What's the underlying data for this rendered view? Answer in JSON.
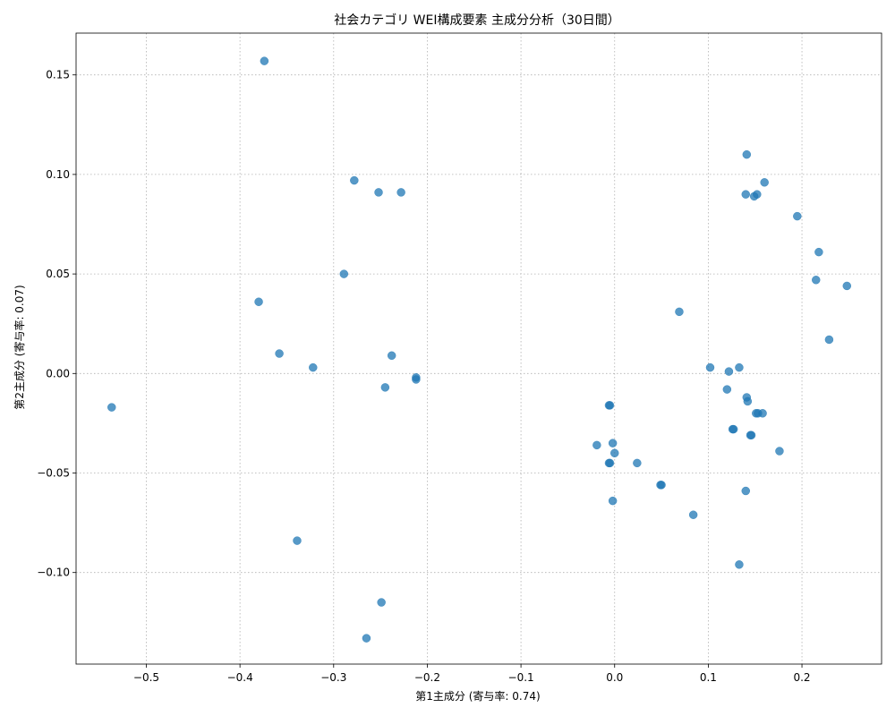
{
  "chart_data": {
    "type": "scatter",
    "title": "社会カテゴリ WEI構成要素 主成分分析（30日間）",
    "xlabel": "第1主成分 (寄与率: 0.74)",
    "ylabel": "第2主成分 (寄与率: 0.07)",
    "xlim": [
      -0.575,
      0.285
    ],
    "ylim": [
      -0.146,
      0.171
    ],
    "xticks": [
      -0.5,
      -0.4,
      -0.3,
      -0.2,
      -0.1,
      0.0,
      0.1,
      0.2
    ],
    "xtick_labels": [
      "−0.5",
      "−0.4",
      "−0.3",
      "−0.2",
      "−0.1",
      "0.0",
      "0.1",
      "0.2"
    ],
    "yticks": [
      -0.1,
      -0.05,
      0.0,
      0.05,
      0.1,
      0.15
    ],
    "ytick_labels": [
      "−0.10",
      "−0.05",
      "0.00",
      "0.05",
      "0.10",
      "0.15"
    ],
    "grid": true,
    "marker_color": "#1f77b4",
    "marker_alpha": 0.75,
    "points": [
      {
        "x": -0.537,
        "y": -0.017
      },
      {
        "x": -0.374,
        "y": 0.157
      },
      {
        "x": -0.38,
        "y": 0.036
      },
      {
        "x": -0.358,
        "y": 0.01
      },
      {
        "x": -0.322,
        "y": 0.003
      },
      {
        "x": -0.339,
        "y": -0.084
      },
      {
        "x": -0.289,
        "y": 0.05
      },
      {
        "x": -0.278,
        "y": 0.097
      },
      {
        "x": -0.252,
        "y": 0.091
      },
      {
        "x": -0.228,
        "y": 0.091
      },
      {
        "x": -0.238,
        "y": 0.009
      },
      {
        "x": -0.245,
        "y": -0.007
      },
      {
        "x": -0.212,
        "y": -0.003
      },
      {
        "x": -0.212,
        "y": -0.002
      },
      {
        "x": -0.249,
        "y": -0.115
      },
      {
        "x": -0.265,
        "y": -0.133
      },
      {
        "x": -0.006,
        "y": -0.016
      },
      {
        "x": -0.005,
        "y": -0.016
      },
      {
        "x": -0.019,
        "y": -0.036
      },
      {
        "x": -0.002,
        "y": -0.035
      },
      {
        "x": 0.0,
        "y": -0.04
      },
      {
        "x": -0.006,
        "y": -0.045
      },
      {
        "x": -0.005,
        "y": -0.045
      },
      {
        "x": 0.024,
        "y": -0.045
      },
      {
        "x": 0.049,
        "y": -0.056
      },
      {
        "x": 0.05,
        "y": -0.056
      },
      {
        "x": -0.002,
        "y": -0.064
      },
      {
        "x": 0.084,
        "y": -0.071
      },
      {
        "x": 0.069,
        "y": 0.031
      },
      {
        "x": 0.102,
        "y": 0.003
      },
      {
        "x": 0.122,
        "y": 0.001
      },
      {
        "x": 0.133,
        "y": 0.003
      },
      {
        "x": 0.12,
        "y": -0.008
      },
      {
        "x": 0.141,
        "y": -0.012
      },
      {
        "x": 0.142,
        "y": -0.014
      },
      {
        "x": 0.151,
        "y": -0.02
      },
      {
        "x": 0.153,
        "y": -0.02
      },
      {
        "x": 0.158,
        "y": -0.02
      },
      {
        "x": 0.126,
        "y": -0.028
      },
      {
        "x": 0.127,
        "y": -0.028
      },
      {
        "x": 0.145,
        "y": -0.031
      },
      {
        "x": 0.146,
        "y": -0.031
      },
      {
        "x": 0.176,
        "y": -0.039
      },
      {
        "x": 0.14,
        "y": -0.059
      },
      {
        "x": 0.133,
        "y": -0.096
      },
      {
        "x": 0.141,
        "y": 0.11
      },
      {
        "x": 0.16,
        "y": 0.096
      },
      {
        "x": 0.14,
        "y": 0.09
      },
      {
        "x": 0.149,
        "y": 0.089
      },
      {
        "x": 0.152,
        "y": 0.09
      },
      {
        "x": 0.195,
        "y": 0.079
      },
      {
        "x": 0.218,
        "y": 0.061
      },
      {
        "x": 0.215,
        "y": 0.047
      },
      {
        "x": 0.248,
        "y": 0.044
      },
      {
        "x": 0.229,
        "y": 0.017
      }
    ]
  }
}
